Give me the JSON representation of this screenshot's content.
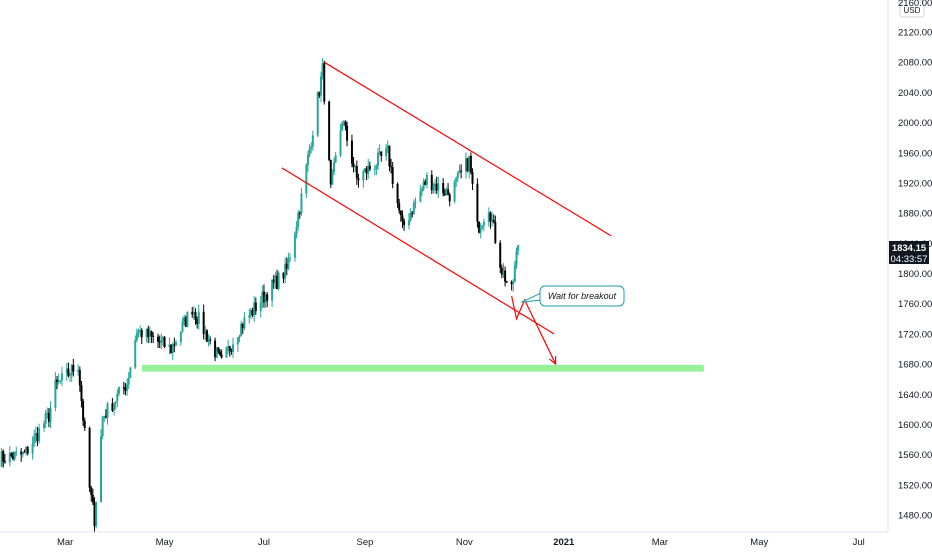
{
  "chart_data": {
    "type": "candlestick",
    "currency": "USD",
    "y_axis_labels": [
      "2120.00",
      "2080.00",
      "2040.00",
      "2000.00",
      "1960.00",
      "1920.00",
      "1880.00",
      "1840.00",
      "1800.00",
      "1760.00",
      "1720.00",
      "1680.00",
      "1640.00",
      "1600.00",
      "1560.00",
      "1520.00",
      "1480.00"
    ],
    "ylim": [
      1465,
      2140
    ],
    "x_axis_labels": [
      {
        "label": "Mar",
        "date": "2020-03-01"
      },
      {
        "label": "May",
        "date": "2020-05-01"
      },
      {
        "label": "Jul",
        "date": "2020-07-01"
      },
      {
        "label": "Sep",
        "date": "2020-09-01"
      },
      {
        "label": "Nov",
        "date": "2020-11-01"
      },
      {
        "label": "2021",
        "date": "2021-01-01",
        "bold": true
      },
      {
        "label": "Mar",
        "date": "2021-03-01"
      },
      {
        "label": "May",
        "date": "2021-05-01"
      },
      {
        "label": "Jul",
        "date": "2021-07-01"
      }
    ],
    "xlim": [
      "2020-01-21",
      "2021-07-19"
    ],
    "top_partial_label": "2160.00",
    "current_price": {
      "price_label": "1834.15",
      "countdown": "04:33:57",
      "value": 1834.15
    },
    "up_color": "#26a69a",
    "down_color": "#000000",
    "key_points": [
      {
        "date": "2020-01-21",
        "close": 1555
      },
      {
        "date": "2020-02-05",
        "close": 1560
      },
      {
        "date": "2020-02-20",
        "close": 1612
      },
      {
        "date": "2020-02-24",
        "close": 1650
      },
      {
        "date": "2020-03-09",
        "close": 1680
      },
      {
        "date": "2020-03-16",
        "close": 1515
      },
      {
        "date": "2020-03-19",
        "close": 1475
      },
      {
        "date": "2020-03-24",
        "close": 1610
      },
      {
        "date": "2020-04-08",
        "close": 1655
      },
      {
        "date": "2020-04-14",
        "close": 1725
      },
      {
        "date": "2020-05-05",
        "close": 1700
      },
      {
        "date": "2020-05-18",
        "close": 1755
      },
      {
        "date": "2020-06-05",
        "close": 1680
      },
      {
        "date": "2020-06-15",
        "close": 1725
      },
      {
        "date": "2020-07-01",
        "close": 1770
      },
      {
        "date": "2020-07-15",
        "close": 1805
      },
      {
        "date": "2020-07-24",
        "close": 1900
      },
      {
        "date": "2020-08-06",
        "close": 2070
      },
      {
        "date": "2020-08-11",
        "close": 1910
      },
      {
        "date": "2020-08-18",
        "close": 2005
      },
      {
        "date": "2020-08-27",
        "close": 1925
      },
      {
        "date": "2020-09-15",
        "close": 1960
      },
      {
        "date": "2020-09-24",
        "close": 1860
      },
      {
        "date": "2020-10-09",
        "close": 1925
      },
      {
        "date": "2020-10-23",
        "close": 1905
      },
      {
        "date": "2020-11-04",
        "close": 1950
      },
      {
        "date": "2020-11-09",
        "close": 1860
      },
      {
        "date": "2020-11-16",
        "close": 1890
      },
      {
        "date": "2020-11-24",
        "close": 1805
      },
      {
        "date": "2020-11-30",
        "close": 1775
      },
      {
        "date": "2020-12-04",
        "close": 1840
      }
    ]
  },
  "drawings": {
    "channel_upper": {
      "from": {
        "date": "2020-08-07",
        "price": 2080
      },
      "to": {
        "date": "2021-01-30",
        "price": 1850
      },
      "color": "#ff0000"
    },
    "channel_lower": {
      "from": {
        "date": "2020-07-12",
        "price": 1940
      },
      "to": {
        "date": "2020-12-26",
        "price": 1720
      },
      "color": "#ff0000"
    },
    "path_arrow": {
      "points": [
        {
          "date": "2020-11-30",
          "price": 1770
        },
        {
          "date": "2020-12-03",
          "price": 1740
        },
        {
          "date": "2020-12-08",
          "price": 1765
        },
        {
          "date": "2020-12-27",
          "price": 1680
        }
      ],
      "color": "#ff0000"
    },
    "support_zone": {
      "from_date": "2020-04-17",
      "to_date": "2021-03-28",
      "top": 1679,
      "bottom": 1670,
      "color": "#98f198"
    },
    "callout": {
      "text": "Wait for breakout",
      "anchor": {
        "date": "2020-12-06",
        "price": 1762
      },
      "border_color": "#1e9ab0"
    }
  }
}
